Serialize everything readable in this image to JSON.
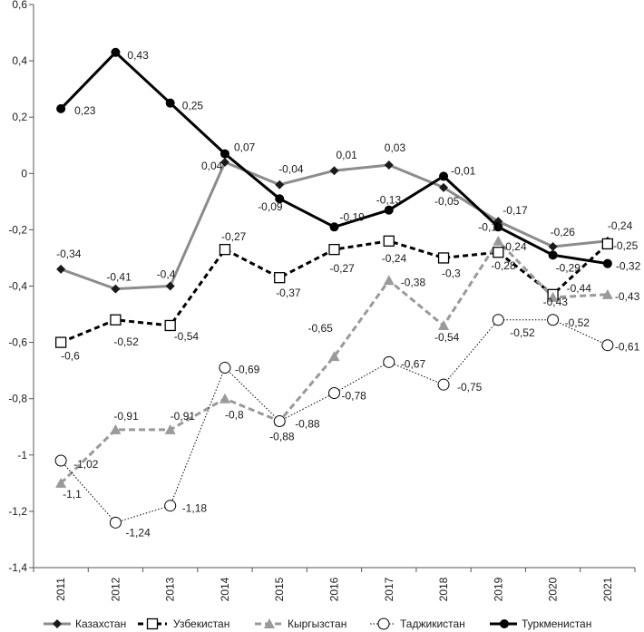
{
  "chart_data": {
    "type": "line",
    "categories": [
      "2011",
      "2012",
      "2013",
      "2014",
      "2015",
      "2016",
      "2017",
      "2018",
      "2019",
      "2020",
      "2021"
    ],
    "ylim": [
      -1.4,
      0.6
    ],
    "yticks": [
      0.6,
      0.4,
      0.2,
      0,
      -0.2,
      -0.4,
      -0.6,
      -0.8,
      -1,
      -1.2,
      -1.4
    ],
    "grid": false,
    "legend": "bottom",
    "data_labels": true,
    "series": [
      {
        "name": "Казахстан",
        "color": "#8c8c8c",
        "marker_color": "#1a1a1a",
        "values": [
          -0.34,
          -0.41,
          -0.4,
          0.04,
          -0.04,
          0.01,
          0.03,
          -0.05,
          -0.17,
          -0.26,
          -0.24
        ]
      },
      {
        "name": "Узбекистан",
        "color": "#000000",
        "marker_color": "#000000",
        "values": [
          -0.6,
          -0.52,
          -0.54,
          -0.27,
          -0.37,
          -0.27,
          -0.24,
          -0.3,
          -0.28,
          -0.43,
          -0.25
        ]
      },
      {
        "name": "Кыргызстан",
        "color": "#9a9a9a",
        "marker_color": "#9a9a9a",
        "values": [
          -1.1,
          -0.91,
          -0.91,
          -0.8,
          -0.88,
          -0.65,
          -0.38,
          -0.54,
          -0.24,
          -0.44,
          -0.43
        ]
      },
      {
        "name": "Таджикистан",
        "color": "#000000",
        "marker_color": "#000000",
        "values": [
          -1.02,
          -1.24,
          -1.18,
          -0.69,
          -0.88,
          -0.78,
          -0.67,
          -0.75,
          -0.52,
          -0.52,
          -0.61
        ]
      },
      {
        "name": "Туркменистан",
        "color": "#000000",
        "marker_color": "#000000",
        "values": [
          0.23,
          0.43,
          0.25,
          0.07,
          -0.09,
          -0.19,
          -0.13,
          -0.01,
          -0.19,
          -0.29,
          -0.32
        ]
      }
    ]
  }
}
